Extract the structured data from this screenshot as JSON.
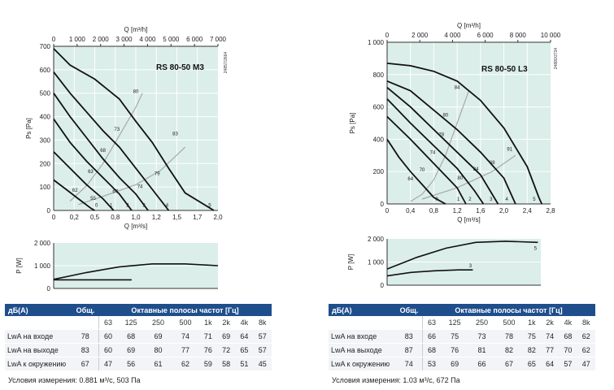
{
  "charts": [
    {
      "id": "m3",
      "model": "RS 80-50 M3",
      "code": "24857/2664",
      "top_axis_label": "Q [m³/h]",
      "top_ticks": [
        "0",
        "1 000",
        "2 000",
        "3 000",
        "4 000",
        "5 000",
        "6 000",
        "7 000"
      ],
      "x_label": "Q [m³/s]",
      "x_ticks": [
        "0",
        "0,2",
        "0,5",
        "0,8",
        "1,0",
        "1,2",
        "1,5",
        "1,7",
        "2,0"
      ],
      "y_label": "Ps [Pa]",
      "y_ticks": [
        "0",
        "100",
        "200",
        "300",
        "400",
        "500",
        "600",
        "700"
      ],
      "power_label": "P [W]",
      "power_ticks": [
        "0",
        "1 000",
        "2 000"
      ]
    },
    {
      "id": "l3",
      "model": "RS 80-50 L3",
      "code": "24880/2734",
      "top_axis_label": "Q [m³/h]",
      "top_ticks": [
        "0",
        "2 000",
        "4 000",
        "6 000",
        "8 000",
        "10 000"
      ],
      "x_label": "Q [m³/s]",
      "x_ticks": [
        "0",
        "0,4",
        "0,8",
        "1,2",
        "1,6",
        "2,0",
        "2,4",
        "2,8"
      ],
      "y_label": "Ps [Pa]",
      "y_ticks": [
        "0",
        "200",
        "400",
        "600",
        "800",
        "1 000"
      ],
      "power_label": "P [W]",
      "power_ticks": [
        "0",
        "1 000",
        "2 000"
      ]
    }
  ],
  "chart_data": [
    {
      "type": "line",
      "name": "RS 80-50 M3 pressure curves",
      "xlabel": "Q [m³/s]",
      "ylabel": "Ps [Pa]",
      "xlim": [
        0,
        2.0
      ],
      "ylim": [
        0,
        700
      ],
      "series": [
        {
          "points": [
            [
              0,
              690
            ],
            [
              0.2,
              620
            ],
            [
              0.5,
              560
            ],
            [
              0.8,
              475
            ],
            [
              1.0,
              380
            ],
            [
              1.2,
              290
            ],
            [
              1.4,
              180
            ],
            [
              1.6,
              75
            ],
            [
              1.95,
              0
            ]
          ]
        },
        {
          "points": [
            [
              0,
              590
            ],
            [
              0.2,
              500
            ],
            [
              0.4,
              420
            ],
            [
              0.6,
              340
            ],
            [
              0.8,
              270
            ],
            [
              1.0,
              180
            ],
            [
              1.2,
              90
            ],
            [
              1.4,
              0
            ]
          ]
        },
        {
          "points": [
            [
              0,
              500
            ],
            [
              0.2,
              400
            ],
            [
              0.4,
              310
            ],
            [
              0.6,
              220
            ],
            [
              0.8,
              140
            ],
            [
              1.0,
              70
            ],
            [
              1.15,
              0
            ]
          ]
        },
        {
          "points": [
            [
              0,
              390
            ],
            [
              0.2,
              290
            ],
            [
              0.4,
              210
            ],
            [
              0.6,
              140
            ],
            [
              0.8,
              70
            ],
            [
              0.95,
              0
            ]
          ]
        },
        {
          "points": [
            [
              0,
              250
            ],
            [
              0.2,
              180
            ],
            [
              0.4,
              110
            ],
            [
              0.6,
              50
            ],
            [
              0.73,
              0
            ]
          ]
        },
        {
          "points": [
            [
              0,
              130
            ],
            [
              0.15,
              90
            ],
            [
              0.3,
              50
            ],
            [
              0.45,
              10
            ],
            [
              0.5,
              0
            ]
          ]
        }
      ],
      "efficiency_curves": [
        {
          "points": [
            [
              0.2,
              40
            ],
            [
              0.4,
              105
            ],
            [
              0.6,
              200
            ],
            [
              0.8,
              320
            ],
            [
              1.0,
              440
            ],
            [
              1.08,
              500
            ]
          ]
        },
        {
          "points": [
            [
              0.3,
              25
            ],
            [
              0.6,
              60
            ],
            [
              1.0,
              110
            ],
            [
              1.3,
              170
            ],
            [
              1.6,
              270
            ]
          ]
        }
      ],
      "curve_labels": [
        {
          "text": "80",
          "q": 1.0,
          "p": 500
        },
        {
          "text": "73",
          "q": 0.77,
          "p": 340
        },
        {
          "text": "68",
          "q": 0.6,
          "p": 250
        },
        {
          "text": "63",
          "q": 0.45,
          "p": 160
        },
        {
          "text": "83",
          "q": 1.48,
          "p": 320
        },
        {
          "text": "79",
          "q": 1.26,
          "p": 150
        },
        {
          "text": "74",
          "q": 1.05,
          "p": 95
        },
        {
          "text": "67",
          "q": 0.75,
          "p": 75
        },
        {
          "text": "62",
          "q": 0.26,
          "p": 80
        },
        {
          "text": "55",
          "q": 0.48,
          "p": 45
        },
        {
          "text": "5",
          "q": 1.9,
          "p": 15
        },
        {
          "text": "4",
          "q": 1.38,
          "p": 15
        },
        {
          "text": "3",
          "q": 1.1,
          "p": 15
        },
        {
          "text": "2",
          "q": 0.9,
          "p": 15
        },
        {
          "text": "1",
          "q": 0.7,
          "p": 15
        },
        {
          "text": "0",
          "q": 0.52,
          "p": 15
        }
      ],
      "power_curves": [
        {
          "xlim": [
            0,
            2.0
          ],
          "ylim": [
            0,
            2000
          ],
          "points": [
            [
              0,
              400
            ],
            [
              0.4,
              700
            ],
            [
              0.8,
              950
            ],
            [
              1.2,
              1080
            ],
            [
              1.6,
              1080
            ],
            [
              2.0,
              1000
            ]
          ]
        },
        {
          "xlim": [
            0,
            2.0
          ],
          "ylim": [
            0,
            2000
          ],
          "points": [
            [
              0,
              380
            ],
            [
              0.5,
              380
            ],
            [
              0.95,
              380
            ]
          ]
        }
      ]
    },
    {
      "type": "line",
      "name": "RS 80-50 L3 pressure curves",
      "xlabel": "Q [m³/s]",
      "ylabel": "Ps [Pa]",
      "xlim": [
        0,
        2.8
      ],
      "ylim": [
        0,
        1000
      ],
      "series": [
        {
          "points": [
            [
              0,
              870
            ],
            [
              0.4,
              855
            ],
            [
              0.8,
              820
            ],
            [
              1.2,
              760
            ],
            [
              1.6,
              640
            ],
            [
              2.0,
              470
            ],
            [
              2.4,
              230
            ],
            [
              2.6,
              40
            ],
            [
              2.65,
              0
            ]
          ]
        },
        {
          "points": [
            [
              0,
              760
            ],
            [
              0.4,
              700
            ],
            [
              0.8,
              580
            ],
            [
              1.2,
              460
            ],
            [
              1.6,
              320
            ],
            [
              2.0,
              160
            ],
            [
              2.2,
              0
            ]
          ]
        },
        {
          "points": [
            [
              0,
              720
            ],
            [
              0.4,
              600
            ],
            [
              0.8,
              460
            ],
            [
              1.2,
              320
            ],
            [
              1.6,
              180
            ],
            [
              1.9,
              0
            ]
          ]
        },
        {
          "points": [
            [
              0,
              650
            ],
            [
              0.4,
              500
            ],
            [
              0.8,
              360
            ],
            [
              1.2,
              220
            ],
            [
              1.5,
              80
            ],
            [
              1.65,
              0
            ]
          ]
        },
        {
          "points": [
            [
              0,
              540
            ],
            [
              0.4,
              400
            ],
            [
              0.8,
              250
            ],
            [
              1.2,
              100
            ],
            [
              1.35,
              0
            ]
          ]
        },
        {
          "points": [
            [
              0,
              400
            ],
            [
              0.2,
              290
            ],
            [
              0.4,
              200
            ],
            [
              0.6,
              120
            ],
            [
              0.8,
              40
            ],
            [
              1.0,
              0
            ]
          ]
        }
      ],
      "efficiency_curves": [
        {
          "points": [
            [
              0.4,
              15
            ],
            [
              0.6,
              60
            ],
            [
              0.8,
              150
            ],
            [
              1.0,
              300
            ],
            [
              1.2,
              500
            ],
            [
              1.4,
              700
            ]
          ]
        },
        {
          "points": [
            [
              0.6,
              30
            ],
            [
              1.2,
              100
            ],
            [
              1.8,
              200
            ],
            [
              2.2,
              300
            ]
          ]
        }
      ],
      "curve_labels": [
        {
          "text": "84",
          "q": 1.2,
          "p": 710
        },
        {
          "text": "80",
          "q": 1.0,
          "p": 540
        },
        {
          "text": "78",
          "q": 0.93,
          "p": 420
        },
        {
          "text": "74",
          "q": 0.78,
          "p": 310
        },
        {
          "text": "70",
          "q": 0.6,
          "p": 200
        },
        {
          "text": "64",
          "q": 0.4,
          "p": 145
        },
        {
          "text": "91",
          "q": 2.1,
          "p": 330
        },
        {
          "text": "88",
          "q": 1.8,
          "p": 245
        },
        {
          "text": "84",
          "q": 1.52,
          "p": 205
        },
        {
          "text": "80",
          "q": 1.25,
          "p": 150
        },
        {
          "text": "5",
          "q": 2.52,
          "p": 20
        },
        {
          "text": "4",
          "q": 2.05,
          "p": 20
        },
        {
          "text": "3",
          "q": 1.78,
          "p": 20
        },
        {
          "text": "2",
          "q": 1.42,
          "p": 20
        },
        {
          "text": "1",
          "q": 1.22,
          "p": 20
        },
        {
          "text": "0",
          "q": 0.85,
          "p": 20
        }
      ],
      "power_curves": [
        {
          "xlim": [
            0,
            2.6
          ],
          "ylim": [
            0,
            2000
          ],
          "label": "5",
          "points": [
            [
              0,
              700
            ],
            [
              0.5,
              1200
            ],
            [
              1.0,
              1600
            ],
            [
              1.5,
              1850
            ],
            [
              2.0,
              1900
            ],
            [
              2.55,
              1850
            ]
          ]
        },
        {
          "xlim": [
            0,
            2.6
          ],
          "ylim": [
            0,
            2000
          ],
          "label": "3",
          "points": [
            [
              0,
              400
            ],
            [
              0.4,
              550
            ],
            [
              0.8,
              620
            ],
            [
              1.2,
              660
            ],
            [
              1.45,
              660
            ]
          ]
        }
      ]
    }
  ],
  "tables": [
    {
      "id": "m3",
      "col_label": "дБ(A)",
      "col_total": "Общ.",
      "col_bands": "Октавные полосы частот [Гц]",
      "bands": [
        "63",
        "125",
        "250",
        "500",
        "1k",
        "2k",
        "4k",
        "8k"
      ],
      "rows": [
        {
          "label": "LwA на входе",
          "total": "78",
          "values": [
            "60",
            "68",
            "69",
            "74",
            "71",
            "69",
            "64",
            "57"
          ]
        },
        {
          "label": "LwA на выходе",
          "total": "83",
          "values": [
            "60",
            "69",
            "80",
            "77",
            "76",
            "72",
            "65",
            "57"
          ]
        },
        {
          "label": "LwA к окружению",
          "total": "67",
          "values": [
            "47",
            "56",
            "61",
            "62",
            "59",
            "58",
            "51",
            "45"
          ]
        }
      ],
      "condition": "Условия измерения: 0.881 м³/с, 503 Па"
    },
    {
      "id": "l3",
      "col_label": "дБ(A)",
      "col_total": "Общ.",
      "col_bands": "Октавные полосы частот [Гц]",
      "bands": [
        "63",
        "125",
        "250",
        "500",
        "1k",
        "2k",
        "4k",
        "8k"
      ],
      "rows": [
        {
          "label": "LwA на входе",
          "total": "83",
          "values": [
            "66",
            "75",
            "73",
            "78",
            "75",
            "74",
            "68",
            "62"
          ]
        },
        {
          "label": "LwA на выходе",
          "total": "87",
          "values": [
            "68",
            "76",
            "81",
            "82",
            "82",
            "77",
            "70",
            "62"
          ]
        },
        {
          "label": "LwA к окружению",
          "total": "74",
          "values": [
            "53",
            "69",
            "66",
            "67",
            "65",
            "64",
            "57",
            "47"
          ]
        }
      ],
      "condition": "Условия измерения: 1.03 м³/с, 672 Па"
    }
  ],
  "colors": {
    "plot_bg": "#dbeee9",
    "grid": "#ffffff",
    "curve": "#111111",
    "eff_curve": "#a8a8a8",
    "table_header": "#1f4e8c"
  }
}
